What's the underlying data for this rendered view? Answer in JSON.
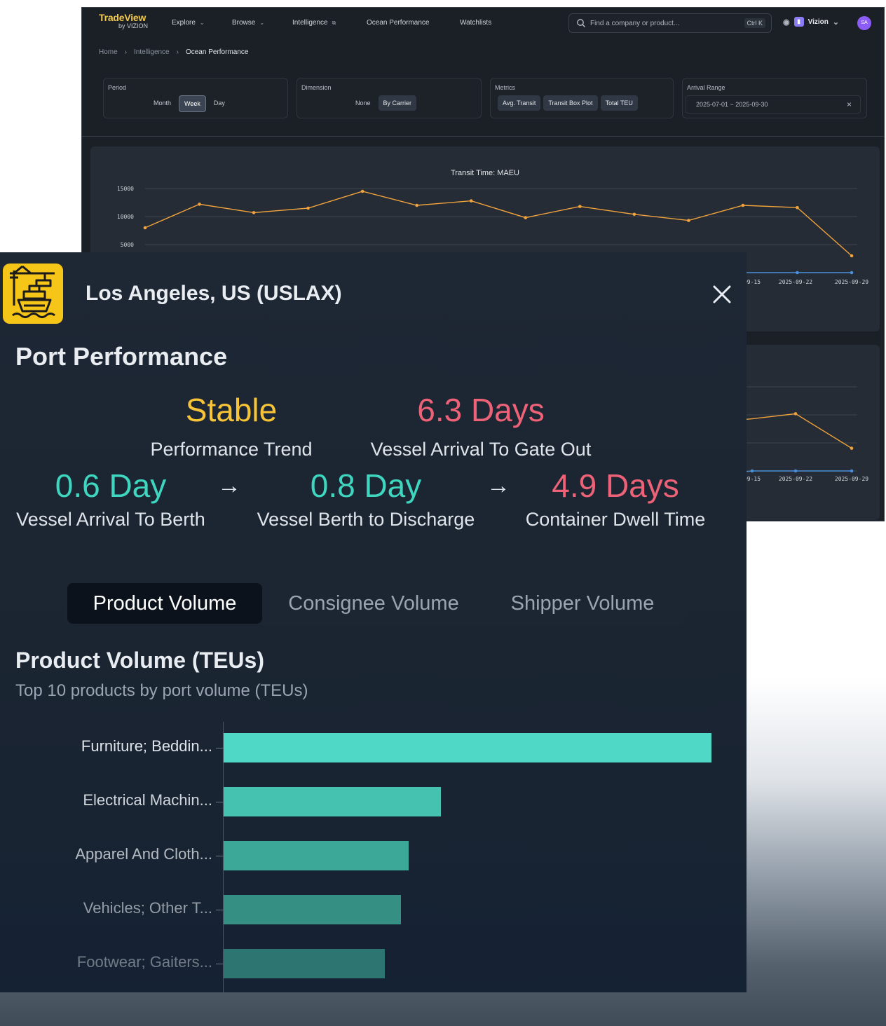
{
  "app": {
    "brand": "TradeView",
    "brand_sub": "by VIZION",
    "nav": [
      {
        "label": "Explore",
        "chevron": true
      },
      {
        "label": "Browse",
        "chevron": true
      },
      {
        "label": "Intelligence",
        "chevron": false
      },
      {
        "label": "Ocean Performance",
        "chevron": false
      },
      {
        "label": "Watchlists",
        "chevron": false
      }
    ],
    "search_placeholder": "Find a company or product...",
    "search_shortcut": "Ctrl K",
    "account": "Vizion",
    "avatar": "SA",
    "breadcrumb": [
      "Home",
      "Intelligence",
      "Ocean Performance"
    ],
    "filters": {
      "period": {
        "label": "Period",
        "options": [
          "Month",
          "Week",
          "Day"
        ],
        "active": "Week"
      },
      "dimension": {
        "label": "Dimension",
        "options": [
          "None",
          "By Carrier"
        ],
        "active": "By Carrier"
      },
      "metrics": {
        "label": "Metrics",
        "options": [
          "Avg. Transit",
          "Transit Box Plot",
          "Total TEU"
        ],
        "active": "Avg. Transit"
      },
      "arrival_range": {
        "label": "Arrival Range",
        "value": "2025-07-01 ~ 2025-09-30"
      }
    }
  },
  "chart_data": [
    {
      "type": "line",
      "title": "Transit Time: MAEU",
      "yticks": [
        15000,
        10000,
        5000
      ],
      "ylim": [
        0,
        15000
      ],
      "x_visible_ticks": [
        "09-15",
        "2025-09-22",
        "2025-09-29"
      ],
      "series": [
        {
          "color": "#f0a23c",
          "values": [
            8000,
            12200,
            10700,
            11500,
            14500,
            12000,
            12800,
            9800,
            11800,
            10400,
            9300,
            12000,
            11600,
            3000
          ]
        },
        {
          "color": "#4a90d9",
          "values": [
            0,
            0,
            0,
            0,
            0,
            0,
            0,
            0,
            0,
            0,
            0,
            0,
            0,
            0
          ]
        }
      ],
      "grid": true
    },
    {
      "type": "line",
      "title": "",
      "x_visible_ticks": [
        "09-15",
        "2025-09-22",
        "2025-09-29"
      ],
      "series": [
        {
          "color": "#f0a23c",
          "values_visible": [
            0.62,
            0.68,
            0.27
          ]
        },
        {
          "color": "#4a90d9",
          "values_visible": [
            0,
            0,
            0
          ]
        }
      ],
      "grid": true
    },
    {
      "type": "bar",
      "orientation": "horizontal",
      "title": "Product Volume (TEUs)",
      "subtitle": "Top 10 products by port volume (TEUs)",
      "categories": [
        "Furniture; Beddin...",
        "Electrical Machin...",
        "Apparel And Cloth...",
        "Vehicles; Other T...",
        "Footwear; Gaiters..."
      ],
      "values": [
        100,
        44.5,
        38,
        36.3,
        33
      ],
      "colors": [
        "#4fd8c5",
        "#46c2b0",
        "#3ca898",
        "#358f83",
        "#2d7570"
      ]
    }
  ],
  "panel": {
    "port_name": "Los Angeles, US (USLAX)",
    "section": "Port Performance",
    "trend": {
      "value": "Stable",
      "label": "Performance Trend"
    },
    "arrival_to_gate": {
      "value": "6.3 Days",
      "label": "Vessel Arrival To Gate Out"
    },
    "arrival_to_berth": {
      "value": "0.6 Day",
      "label": "Vessel Arrival To Berth"
    },
    "berth_to_discharge": {
      "value": "0.8 Day",
      "label": "Vessel Berth to Discharge"
    },
    "dwell": {
      "value": "4.9 Days",
      "label": "Container Dwell Time"
    },
    "arrow": "→",
    "tabs": [
      "Product Volume",
      "Consignee Volume",
      "Shipper Volume"
    ],
    "active_tab": "Product Volume"
  },
  "colors": {
    "accent_yellow": "#f6c436",
    "accent_red": "#ee6277",
    "accent_teal": "#3fd6c0"
  }
}
